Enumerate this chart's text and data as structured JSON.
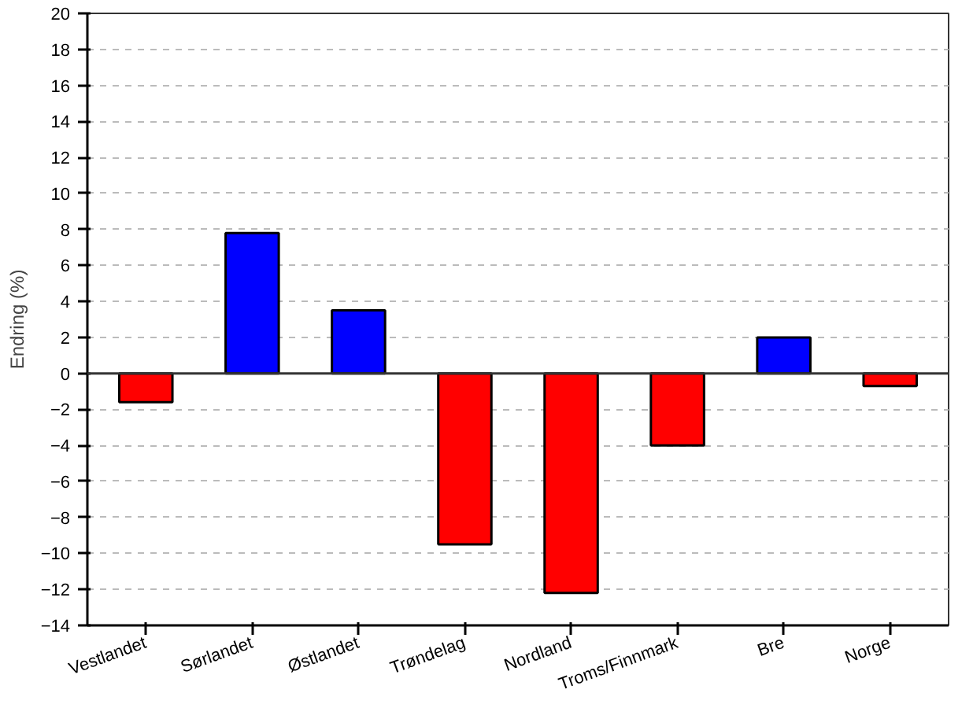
{
  "chart_data": {
    "type": "bar",
    "ylabel": "Endring (%)",
    "categories": [
      "Vestlandet",
      "Sørlandet",
      "Østlandet",
      "Trøndelag",
      "Nordland",
      "Troms/Finnmark",
      "Bre",
      "Norge"
    ],
    "values": [
      -1.6,
      7.8,
      3.5,
      -9.5,
      -12.2,
      -4.0,
      2.0,
      -0.7
    ],
    "colors": [
      "#ff0000",
      "#0000ff",
      "#0000ff",
      "#ff0000",
      "#ff0000",
      "#ff0000",
      "#0000ff",
      "#ff0000"
    ],
    "ylim": [
      -14,
      20
    ],
    "yticks": [
      -14,
      -12,
      -10,
      -8,
      -6,
      -4,
      -2,
      0,
      2,
      4,
      6,
      8,
      10,
      12,
      14,
      16,
      18,
      20
    ],
    "grid": "y"
  }
}
